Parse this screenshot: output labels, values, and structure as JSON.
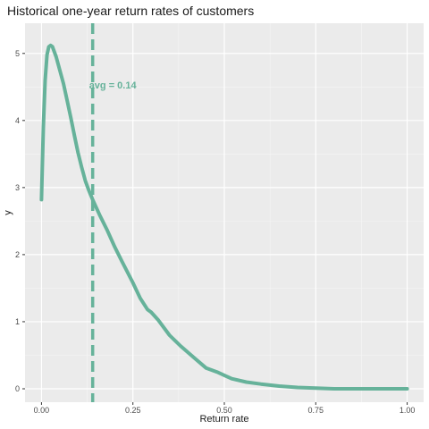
{
  "chart_data": {
    "type": "line",
    "title": "Historical one-year return rates of customers",
    "xlabel": "Return rate",
    "ylabel": "y",
    "xlim": [
      -0.045,
      1.045
    ],
    "ylim": [
      -0.2,
      5.45
    ],
    "x_ticks": [
      0.0,
      0.25,
      0.5,
      0.75,
      1.0
    ],
    "x_tick_labels": [
      "0.00",
      "0.25",
      "0.50",
      "0.75",
      "1.00"
    ],
    "y_ticks": [
      0,
      1,
      2,
      3,
      4,
      5
    ],
    "y_tick_labels": [
      "0",
      "1",
      "2",
      "3",
      "4",
      "5"
    ],
    "grid": true,
    "legend": "none",
    "series": [
      {
        "color": "#66b29a",
        "x": [
          0.0,
          0.005,
          0.01,
          0.015,
          0.02,
          0.025,
          0.03,
          0.04,
          0.05,
          0.06,
          0.07,
          0.08,
          0.09,
          0.1,
          0.11,
          0.12,
          0.13,
          0.14,
          0.15,
          0.16,
          0.18,
          0.2,
          0.22,
          0.25,
          0.27,
          0.29,
          0.3,
          0.32,
          0.35,
          0.38,
          0.42,
          0.45,
          0.48,
          0.52,
          0.56,
          0.6,
          0.65,
          0.7,
          0.75,
          0.8,
          0.9,
          1.0
        ],
        "y": [
          2.82,
          3.9,
          4.6,
          4.98,
          5.1,
          5.12,
          5.1,
          4.95,
          4.75,
          4.55,
          4.3,
          4.05,
          3.78,
          3.52,
          3.3,
          3.1,
          2.95,
          2.82,
          2.7,
          2.58,
          2.36,
          2.12,
          1.9,
          1.58,
          1.35,
          1.18,
          1.14,
          1.02,
          0.8,
          0.64,
          0.45,
          0.31,
          0.25,
          0.15,
          0.1,
          0.07,
          0.04,
          0.02,
          0.01,
          0.0,
          0.0,
          0.0
        ]
      }
    ],
    "vline": {
      "x": 0.14,
      "label": "avg =  0.14",
      "color": "#66b29a",
      "style": "dashed"
    }
  }
}
